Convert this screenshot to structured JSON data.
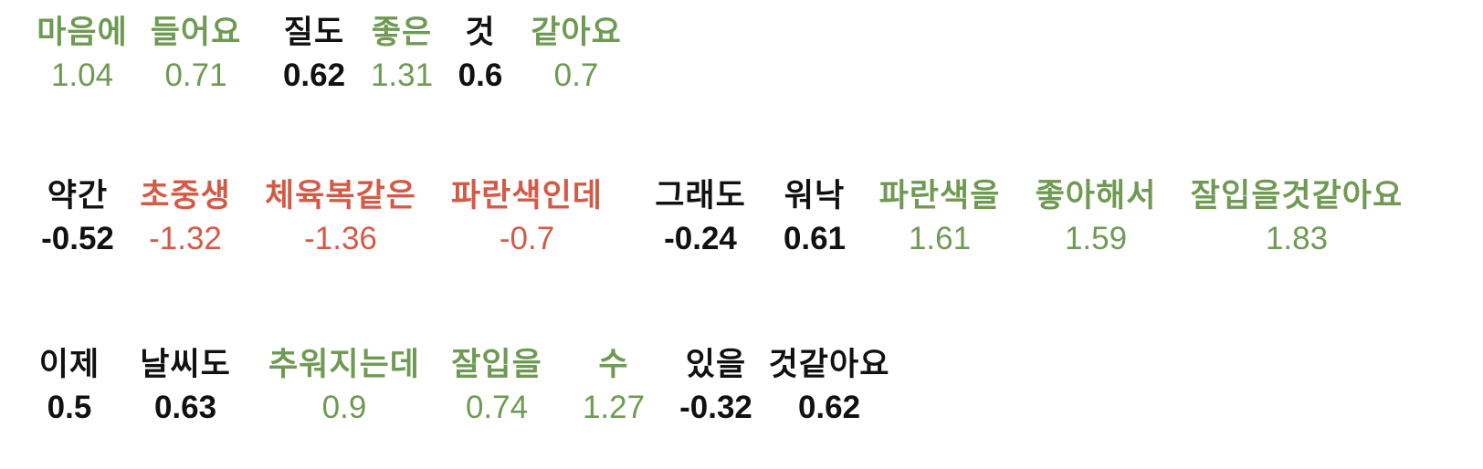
{
  "colors": {
    "positive": "#6e9a52",
    "negative": "#d45a45",
    "neutral": "#111111"
  },
  "rows": [
    {
      "tokens": [
        {
          "word": "마음에",
          "score": "1.04",
          "sentiment": "positive"
        },
        {
          "word": "들어요",
          "score": "0.71",
          "sentiment": "positive"
        },
        {
          "word": "질도",
          "score": "0.62",
          "sentiment": "neutral"
        },
        {
          "word": "좋은",
          "score": "1.31",
          "sentiment": "positive"
        },
        {
          "word": "것",
          "score": "0.6",
          "sentiment": "neutral"
        },
        {
          "word": "같아요",
          "score": "0.7",
          "sentiment": "positive"
        }
      ]
    },
    {
      "tokens": [
        {
          "word": "약간",
          "score": "-0.52",
          "sentiment": "neutral"
        },
        {
          "word": "초중생",
          "score": "-1.32",
          "sentiment": "negative"
        },
        {
          "word": "체육복같은",
          "score": "-1.36",
          "sentiment": "negative"
        },
        {
          "word": "파란색인데",
          "score": "-0.7",
          "sentiment": "negative"
        },
        {
          "word": "그래도",
          "score": "-0.24",
          "sentiment": "neutral"
        },
        {
          "word": "워낙",
          "score": "0.61",
          "sentiment": "neutral"
        },
        {
          "word": "파란색을",
          "score": "1.61",
          "sentiment": "positive"
        },
        {
          "word": "좋아해서",
          "score": "1.59",
          "sentiment": "positive"
        },
        {
          "word": "잘입을것같아요",
          "score": "1.83",
          "sentiment": "positive"
        }
      ]
    },
    {
      "tokens": [
        {
          "word": "이제",
          "score": "0.5",
          "sentiment": "neutral"
        },
        {
          "word": "날씨도",
          "score": "0.63",
          "sentiment": "neutral"
        },
        {
          "word": "추워지는데",
          "score": "0.9",
          "sentiment": "positive"
        },
        {
          "word": "잘입을",
          "score": "0.74",
          "sentiment": "positive"
        },
        {
          "word": "수",
          "score": "1.27",
          "sentiment": "positive"
        },
        {
          "word": "있을",
          "score": "-0.32",
          "sentiment": "neutral"
        },
        {
          "word": "것같아요",
          "score": "0.62",
          "sentiment": "neutral"
        }
      ]
    }
  ]
}
